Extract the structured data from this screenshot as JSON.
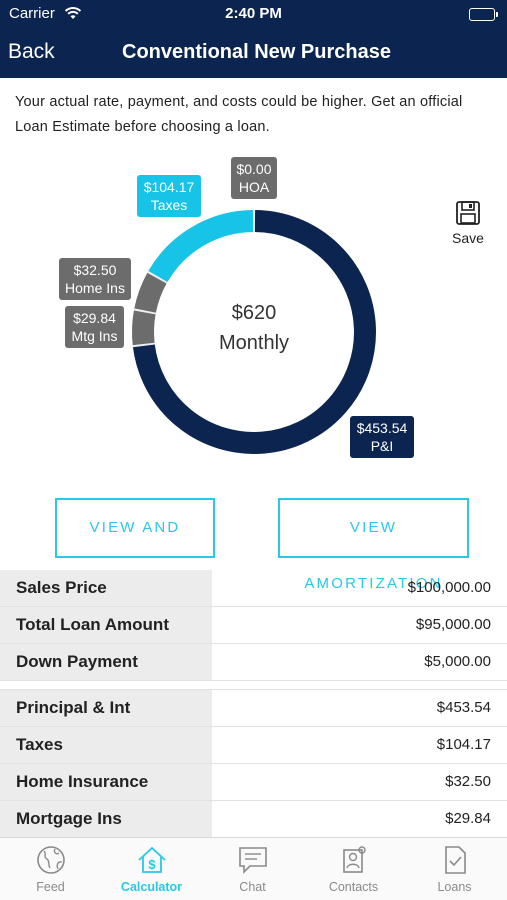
{
  "status_bar": {
    "carrier": "Carrier",
    "time": "2:40 PM"
  },
  "nav": {
    "back_label": "Back",
    "title": "Conventional New Purchase"
  },
  "disclaimer": "Your actual rate, payment, and costs could be higher. Get an official Loan Estimate before choosing a loan.",
  "chart": {
    "center_amount": "$620",
    "center_period": "Monthly",
    "segments": [
      {
        "name": "HOA",
        "amount": "$0.00",
        "value": 0.0,
        "color": "#6c6c6c"
      },
      {
        "name": "Taxes",
        "amount": "$104.17",
        "value": 104.17,
        "color": "#17c3e6"
      },
      {
        "name": "Home Ins",
        "amount": "$32.50",
        "value": 32.5,
        "color": "#6c6c6c"
      },
      {
        "name": "Mtg Ins",
        "amount": "$29.84",
        "value": 29.84,
        "color": "#6c6c6c"
      },
      {
        "name": "P&I",
        "amount": "$453.54",
        "value": 453.54,
        "color": "#0c2550"
      }
    ]
  },
  "save_label": "Save",
  "buttons": {
    "share": "VIEW AND SHARE",
    "amortization": "VIEW AMORTIZATION"
  },
  "loan_rows": [
    {
      "label": "Sales Price",
      "value": "$100,000.00"
    },
    {
      "label": "Total Loan Amount",
      "value": "$95,000.00"
    },
    {
      "label": "Down Payment",
      "value": "$5,000.00"
    }
  ],
  "payment_rows": [
    {
      "label": "Principal & Int",
      "value": "$453.54"
    },
    {
      "label": "Taxes",
      "value": "$104.17"
    },
    {
      "label": "Home Insurance",
      "value": "$32.50"
    },
    {
      "label": "Mortgage Ins",
      "value": "$29.84"
    }
  ],
  "tabs": [
    {
      "label": "Feed",
      "icon": "globe-icon"
    },
    {
      "label": "Calculator",
      "icon": "house-dollar-icon",
      "active": true
    },
    {
      "label": "Chat",
      "icon": "chat-icon"
    },
    {
      "label": "Contacts",
      "icon": "contacts-icon"
    },
    {
      "label": "Loans",
      "icon": "document-check-icon"
    }
  ],
  "colors": {
    "navy": "#0c2550",
    "cyan": "#17c3e6",
    "accent": "#28c8e8",
    "gray": "#6c6c6c"
  }
}
